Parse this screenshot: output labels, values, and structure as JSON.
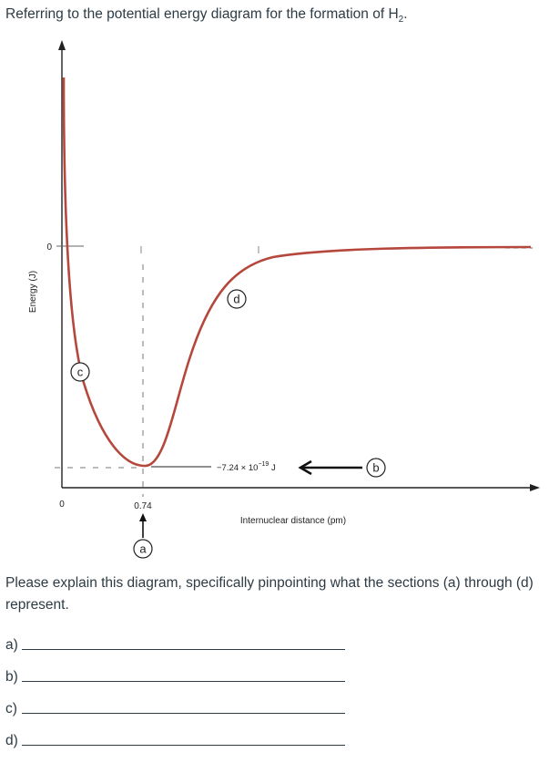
{
  "prompt": {
    "text_before": "Referring to the potential energy diagram for the formation of H",
    "subscript": "2",
    "text_after": "."
  },
  "diagram": {
    "y_axis_label": "Energy (J)",
    "y_zero_label": "0",
    "x_zero_label": "0",
    "x_axis_label": "Internuclear distance (pm)",
    "bond_length_label": "0.74",
    "energy_label": "−7.24 × 10",
    "energy_exponent": "−19",
    "energy_unit": " J",
    "markers": {
      "a": "a",
      "b": "b",
      "c": "c",
      "d": "d"
    },
    "curve_color": "#b5473c"
  },
  "question": {
    "text": "Please explain this diagram, specifically pinpointing what the sections (a) through (d) represent."
  },
  "answers": [
    {
      "label": "a)"
    },
    {
      "label": "b)"
    },
    {
      "label": "c)"
    },
    {
      "label": "d)"
    }
  ]
}
